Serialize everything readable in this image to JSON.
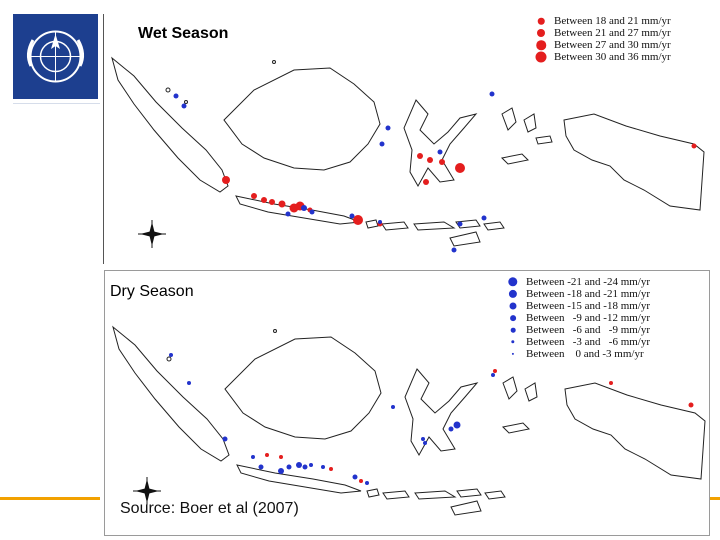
{
  "wet": {
    "title": "Wet Season",
    "legend": [
      {
        "label": "Between 18 and 21 mm/yr",
        "color": "#e41e1e",
        "size": 1
      },
      {
        "label": "Between 21 and 27 mm/yr",
        "color": "#e41e1e",
        "size": 2
      },
      {
        "label": "Between 27 and 30 mm/yr",
        "color": "#e41e1e",
        "size": 3
      },
      {
        "label": "Between 30 and 36 mm/yr",
        "color": "#e41e1e",
        "size": 4
      }
    ]
  },
  "dry": {
    "title": "Dry Season",
    "legend": [
      {
        "label": "Between -21 and -24 mm/yr",
        "color": "#2233cc",
        "size": 7
      },
      {
        "label": "Between -18 and -21 mm/yr",
        "color": "#2233cc",
        "size": 6
      },
      {
        "label": "Between -15 and -18 mm/yr",
        "color": "#2233cc",
        "size": 5
      },
      {
        "label": "Between   -9 and -12 mm/yr",
        "color": "#2233cc",
        "size": 4
      },
      {
        "label": "Between   -6 and   -9 mm/yr",
        "color": "#2233cc",
        "size": 3
      },
      {
        "label": "Between   -3 and   -6 mm/yr",
        "color": "#2233cc",
        "size": 2
      },
      {
        "label": "Between    0 and -3 mm/yr",
        "color": "#2233cc",
        "size": 1
      }
    ]
  },
  "source": "Source: Boer et al (2007)",
  "icons": {
    "logo": "wmo-emblem-icon",
    "compass": "compass-rose-icon"
  },
  "colors": {
    "increase": "#e41e1e",
    "decrease": "#2233cc",
    "logo_bg": "#1d3f8f",
    "accent": "#f2a100"
  }
}
